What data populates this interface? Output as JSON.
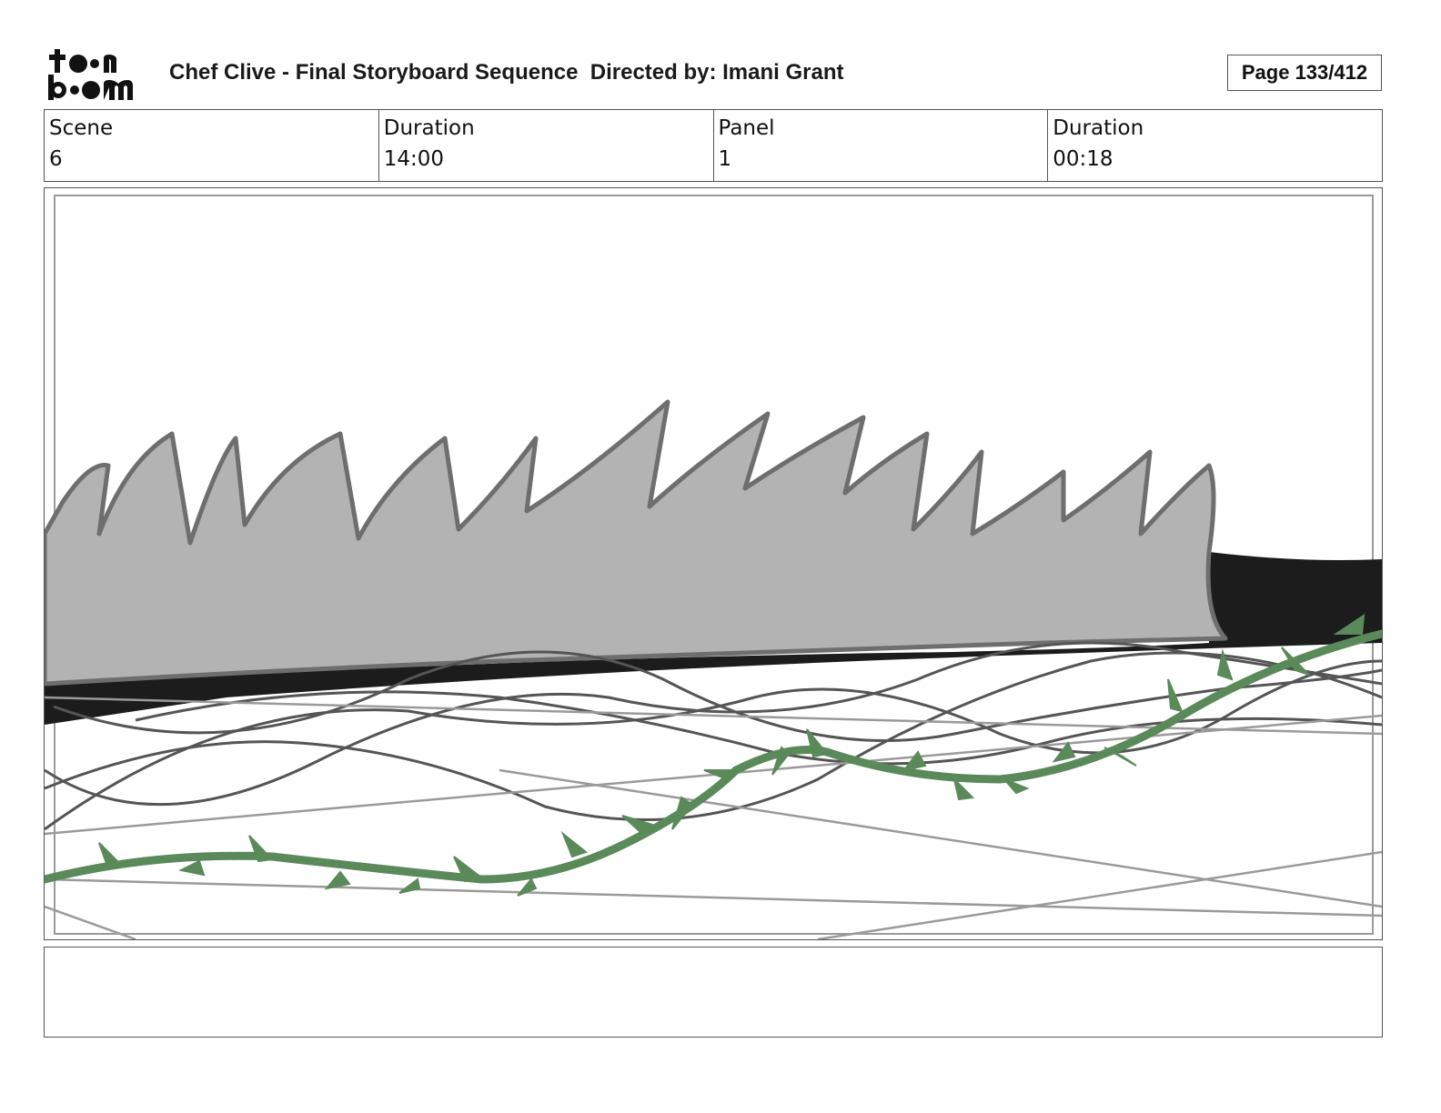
{
  "logo": {
    "icon": "toonboom-logo",
    "text_line1": "toon",
    "text_line2": "boom"
  },
  "header": {
    "title": "Chef Clive - Final Storyboard Sequence  Directed by: Imani Grant",
    "page": "Page 133/412"
  },
  "info": {
    "scene_label": "Scene",
    "scene_value": "6",
    "scene_duration_label": "Duration",
    "scene_duration_value": "14:00",
    "panel_label": "Panel",
    "panel_value": "1",
    "panel_duration_label": "Duration",
    "panel_duration_value": "00:18"
  },
  "colors": {
    "border": "#555555",
    "grass_fill": "#b3b3b3",
    "grass_stroke": "#6e6e6e",
    "ground": "#1c1c1c",
    "vine": "#5a8a5a"
  },
  "notes": {
    "text": ""
  }
}
